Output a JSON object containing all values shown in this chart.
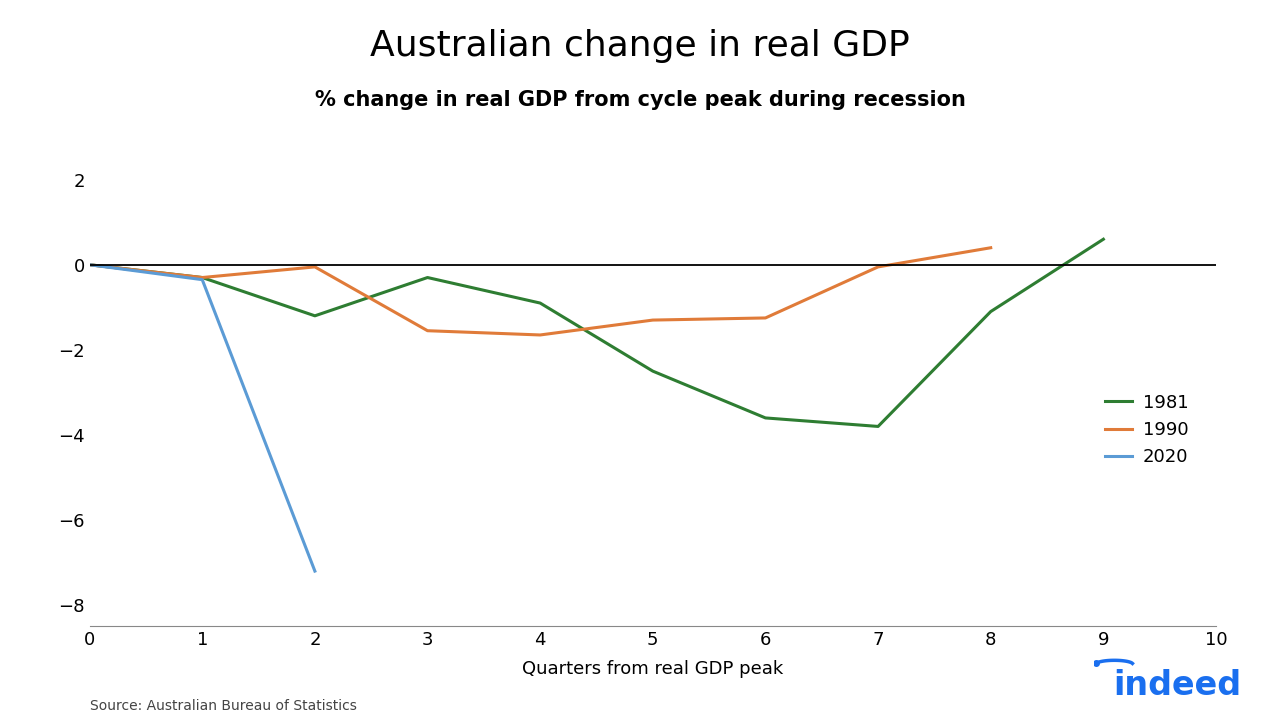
{
  "title": "Australian change in real GDP",
  "subtitle": "% change in real GDP from cycle peak during recession",
  "xlabel": "Quarters from real GDP peak",
  "source": "Source: Australian Bureau of Statistics",
  "xlim": [
    0,
    10
  ],
  "ylim": [
    -8.5,
    2.5
  ],
  "yticks": [
    -8,
    -6,
    -4,
    -2,
    0,
    2
  ],
  "xticks": [
    0,
    1,
    2,
    3,
    4,
    5,
    6,
    7,
    8,
    9,
    10
  ],
  "series": {
    "1981": {
      "x": [
        0,
        1,
        2,
        3,
        4,
        5,
        6,
        7,
        8,
        9
      ],
      "y": [
        0,
        -0.3,
        -1.2,
        -0.3,
        -0.9,
        -2.5,
        -3.6,
        -3.8,
        -1.1,
        0.6
      ],
      "color": "#2e7d32",
      "linewidth": 2.2
    },
    "1990": {
      "x": [
        0,
        1,
        2,
        3,
        4,
        5,
        6,
        7,
        8
      ],
      "y": [
        0,
        -0.3,
        -0.05,
        -1.55,
        -1.65,
        -1.3,
        -1.25,
        -0.05,
        0.4
      ],
      "color": "#e07b39",
      "linewidth": 2.2
    },
    "2020": {
      "x": [
        0,
        1,
        2
      ],
      "y": [
        0,
        -0.35,
        -7.2
      ],
      "color": "#5b9bd5",
      "linewidth": 2.2
    }
  },
  "background_color": "#ffffff",
  "title_fontsize": 26,
  "subtitle_fontsize": 15,
  "axis_fontsize": 13,
  "tick_fontsize": 13,
  "legend_fontsize": 13,
  "indeed_color": "#1a6fef",
  "source_fontsize": 10
}
